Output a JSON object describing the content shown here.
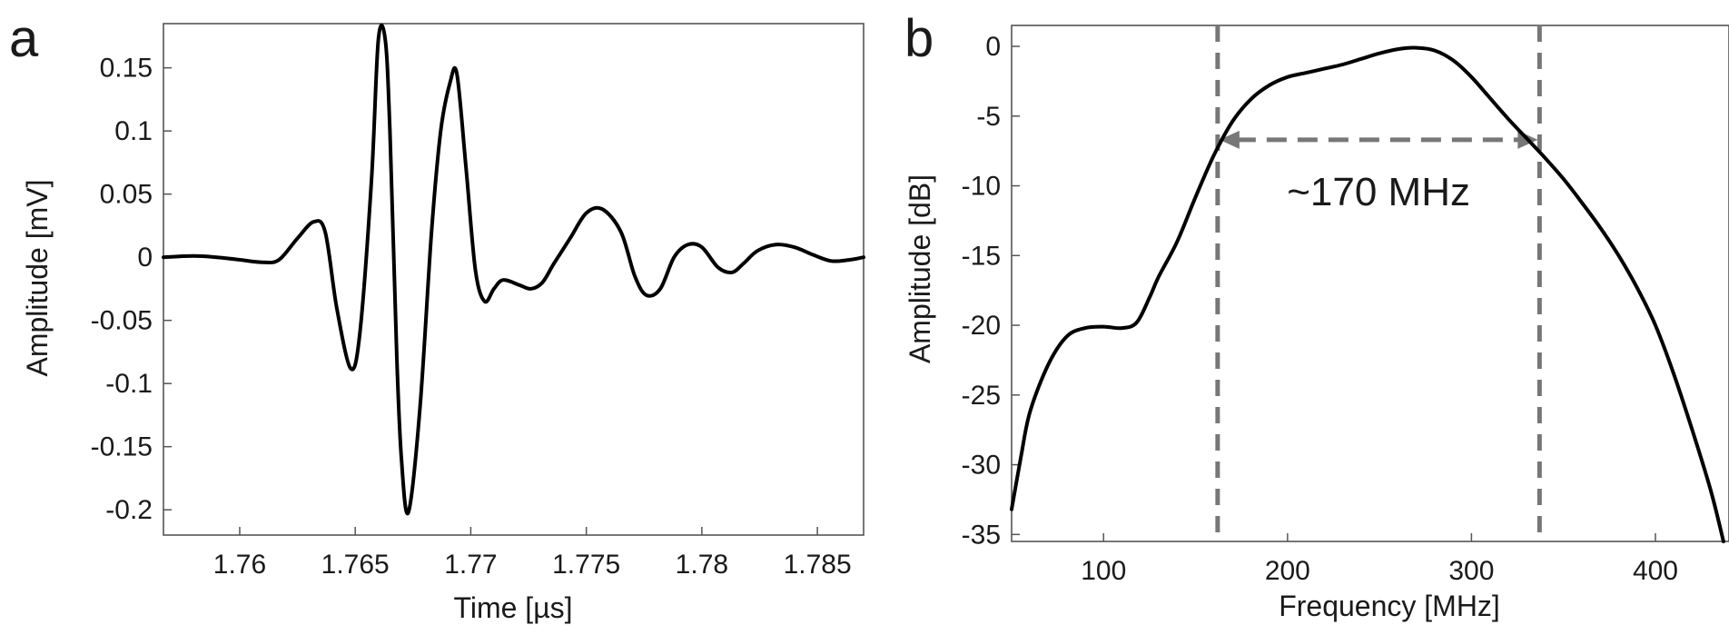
{
  "chart_data": [
    {
      "type": "line",
      "panel_label": "a",
      "title": "",
      "xlabel": "Time [µs]",
      "ylabel": "Amplitude [mV]",
      "xlim": [
        1.7567,
        1.787
      ],
      "ylim": [
        -0.22,
        0.185
      ],
      "x_ticks": [
        1.76,
        1.765,
        1.77,
        1.775,
        1.78,
        1.785
      ],
      "x_tick_labels": [
        "1.76",
        "1.765",
        "1.77",
        "1.775",
        "1.78",
        "1.785"
      ],
      "y_ticks": [
        0.15,
        0.1,
        0.05,
        0,
        -0.05,
        -0.1,
        -0.15,
        -0.2
      ],
      "y_tick_labels": [
        "0.15",
        "0.1",
        "0.05",
        "0",
        "-0.05",
        "-0.1",
        "-0.15",
        "-0.2"
      ],
      "grid": false,
      "line_color": "#000000",
      "series": [
        {
          "x": [
            1.7567,
            1.758,
            1.759,
            1.76,
            1.761,
            1.7617,
            1.7625,
            1.7632,
            1.7637,
            1.7642,
            1.7648,
            1.7652,
            1.7657,
            1.766,
            1.7663,
            1.7665,
            1.7668,
            1.767,
            1.7673,
            1.7678,
            1.7683,
            1.7687,
            1.7691,
            1.7694,
            1.7698,
            1.7702,
            1.7706,
            1.771,
            1.7714,
            1.7721,
            1.7726,
            1.7731,
            1.7736,
            1.7743,
            1.775,
            1.7757,
            1.7765,
            1.7771,
            1.7776,
            1.7782,
            1.7788,
            1.7794,
            1.78,
            1.7807,
            1.7813,
            1.7818,
            1.7824,
            1.7832,
            1.784,
            1.7848,
            1.7856,
            1.7864,
            1.787
          ],
          "y": [
            0.0,
            0.001,
            0.0,
            -0.002,
            -0.004,
            -0.002,
            0.015,
            0.028,
            0.02,
            -0.04,
            -0.088,
            -0.06,
            0.06,
            0.172,
            0.172,
            0.1,
            -0.08,
            -0.16,
            -0.202,
            -0.12,
            0.02,
            0.1,
            0.138,
            0.145,
            0.07,
            -0.01,
            -0.035,
            -0.025,
            -0.018,
            -0.022,
            -0.025,
            -0.02,
            -0.005,
            0.015,
            0.035,
            0.038,
            0.02,
            -0.015,
            -0.03,
            -0.025,
            0.0,
            0.01,
            0.008,
            -0.008,
            -0.012,
            -0.005,
            0.005,
            0.01,
            0.008,
            0.002,
            -0.003,
            -0.002,
            0.0
          ]
        }
      ]
    },
    {
      "type": "line",
      "panel_label": "b",
      "title": "",
      "xlabel": "Frequency [MHz]",
      "ylabel": "Amplitude [dB]",
      "xlim": [
        50,
        440
      ],
      "ylim": [
        -35.5,
        1.5
      ],
      "x_ticks": [
        100,
        200,
        300,
        400
      ],
      "x_tick_labels": [
        "100",
        "200",
        "300",
        "400"
      ],
      "y_ticks": [
        0,
        -5,
        -10,
        -15,
        -20,
        -25,
        -30,
        -35
      ],
      "y_tick_labels": [
        "0",
        "-5",
        "-10",
        "-15",
        "-20",
        "-25",
        "-30",
        "-35"
      ],
      "grid": false,
      "line_color": "#000000",
      "series": [
        {
          "x": [
            50,
            55,
            60,
            70,
            80,
            90,
            100,
            110,
            118,
            125,
            130,
            140,
            150,
            160,
            170,
            180,
            190,
            200,
            210,
            220,
            230,
            240,
            250,
            260,
            270,
            280,
            290,
            300,
            310,
            320,
            330,
            340,
            350,
            360,
            370,
            380,
            390,
            400,
            410,
            420,
            430,
            437
          ],
          "y": [
            -33.2,
            -29.5,
            -26.2,
            -22.8,
            -20.8,
            -20.2,
            -20.1,
            -20.2,
            -19.8,
            -18.0,
            -16.5,
            -14.0,
            -10.8,
            -7.8,
            -5.4,
            -3.8,
            -2.8,
            -2.2,
            -1.9,
            -1.6,
            -1.3,
            -0.9,
            -0.5,
            -0.2,
            -0.1,
            -0.3,
            -1.0,
            -2.2,
            -3.7,
            -5.2,
            -6.6,
            -8.0,
            -9.5,
            -11.2,
            -13.0,
            -15.0,
            -17.3,
            -20.0,
            -23.5,
            -27.5,
            -31.8,
            -35.5
          ]
        }
      ],
      "annotations": {
        "bandwidth_label": "~170 MHz",
        "left_freq": 162,
        "right_freq": 337,
        "level_db": -6.7,
        "marker_color": "#777777"
      }
    }
  ]
}
